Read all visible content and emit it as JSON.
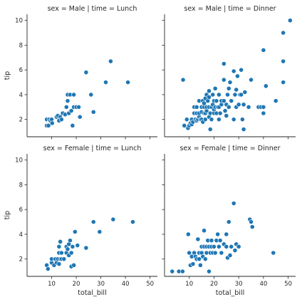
{
  "chart_data": {
    "type": "scatter",
    "xlabel": "total_bill",
    "ylabel": "tip",
    "xlim": [
      0,
      53
    ],
    "ylim": [
      0.6,
      10.5
    ],
    "xticks": [
      10,
      20,
      30,
      40,
      50
    ],
    "yticks": [
      2,
      4,
      6,
      8,
      10
    ],
    "marker_color": "#1f77b4",
    "panels": [
      {
        "title": "sex = Male | time = Lunch",
        "points": [
          [
            8,
            1.5
          ],
          [
            8,
            2
          ],
          [
            8.7,
            1.5
          ],
          [
            9,
            2
          ],
          [
            9.5,
            1.9
          ],
          [
            10,
            2
          ],
          [
            10.2,
            1.7
          ],
          [
            12,
            2.2
          ],
          [
            12.5,
            2.3
          ],
          [
            13,
            1.9
          ],
          [
            13.5,
            2.2
          ],
          [
            14,
            2
          ],
          [
            14.5,
            2.5
          ],
          [
            15.5,
            2.4
          ],
          [
            16,
            3
          ],
          [
            16.5,
            4
          ],
          [
            16.5,
            3.5
          ],
          [
            17,
            2.5
          ],
          [
            17.5,
            4
          ],
          [
            18,
            2.7
          ],
          [
            18.5,
            1.5
          ],
          [
            19,
            3
          ],
          [
            19,
            4
          ],
          [
            20,
            3
          ],
          [
            21,
            3
          ],
          [
            21.5,
            2.2
          ],
          [
            24,
            5.8
          ],
          [
            26,
            4
          ],
          [
            27,
            2.6
          ],
          [
            32,
            5
          ],
          [
            34,
            6.7
          ],
          [
            41,
            5
          ]
        ]
      },
      {
        "title": "sex = Male | time = Dinner",
        "points": [
          [
            7.5,
            5.2
          ],
          [
            8,
            1.5
          ],
          [
            9,
            2
          ],
          [
            9.5,
            1.3
          ],
          [
            10,
            1.5
          ],
          [
            10.5,
            1.7
          ],
          [
            11,
            1.6
          ],
          [
            11,
            2
          ],
          [
            11.5,
            1.8
          ],
          [
            12,
            2.5
          ],
          [
            12,
            3
          ],
          [
            12.5,
            2
          ],
          [
            13,
            1.9
          ],
          [
            13,
            2.5
          ],
          [
            13,
            3
          ],
          [
            13.5,
            2
          ],
          [
            14,
            2.2
          ],
          [
            14,
            2.5
          ],
          [
            14,
            3.5
          ],
          [
            14.5,
            2
          ],
          [
            15,
            2
          ],
          [
            15,
            2.6
          ],
          [
            15,
            3
          ],
          [
            15.5,
            3.5
          ],
          [
            15.5,
            1.8
          ],
          [
            16,
            2.5
          ],
          [
            16,
            3
          ],
          [
            16,
            3.3
          ],
          [
            16.5,
            2
          ],
          [
            16.5,
            2.5
          ],
          [
            16.5,
            3.7
          ],
          [
            17,
            2.7
          ],
          [
            17,
            3
          ],
          [
            17,
            4
          ],
          [
            17.5,
            3.5
          ],
          [
            18,
            2.2
          ],
          [
            18,
            3
          ],
          [
            18,
            3.8
          ],
          [
            18,
            4.3
          ],
          [
            18.5,
            2.5
          ],
          [
            18.5,
            1.2
          ],
          [
            19,
            3
          ],
          [
            19,
            2
          ],
          [
            19.5,
            3.2
          ],
          [
            19.5,
            4
          ],
          [
            20,
            2.8
          ],
          [
            20,
            3.5
          ],
          [
            20,
            2.5
          ],
          [
            20.5,
            3
          ],
          [
            20.5,
            4.5
          ],
          [
            21,
            3.5
          ],
          [
            21,
            2.5
          ],
          [
            21.5,
            3
          ],
          [
            22,
            2
          ],
          [
            22,
            3
          ],
          [
            22,
            4
          ],
          [
            22.5,
            2.5
          ],
          [
            23,
            3.2
          ],
          [
            23,
            3.5
          ],
          [
            24,
            3.5
          ],
          [
            24,
            5.2
          ],
          [
            24,
            6.5
          ],
          [
            24.5,
            2.7
          ],
          [
            25,
            3.2
          ],
          [
            25,
            2.3
          ],
          [
            25.5,
            4
          ],
          [
            26,
            3
          ],
          [
            26,
            4.5
          ],
          [
            26.5,
            5
          ],
          [
            27,
            3.5
          ],
          [
            28,
            2
          ],
          [
            28,
            5.9
          ],
          [
            28.5,
            4
          ],
          [
            29,
            3
          ],
          [
            29,
            4.4
          ],
          [
            29.5,
            5.5
          ],
          [
            30,
            3.2
          ],
          [
            30.5,
            4
          ],
          [
            31,
            6
          ],
          [
            31,
            4
          ],
          [
            31.5,
            2
          ],
          [
            32,
            1.2
          ],
          [
            32,
            3.2
          ],
          [
            32.5,
            4.2
          ],
          [
            34,
            3
          ],
          [
            35,
            5.2
          ],
          [
            38,
            3
          ],
          [
            39,
            3
          ],
          [
            40,
            2.5
          ],
          [
            40,
            7.6
          ],
          [
            40,
            3
          ],
          [
            41,
            4.7
          ],
          [
            45,
            3.5
          ],
          [
            48,
            5
          ],
          [
            48,
            9
          ],
          [
            48,
            6.7
          ],
          [
            50.8,
            10
          ]
        ]
      },
      {
        "title": "sex = Female | time = Lunch",
        "points": [
          [
            8,
            1.5
          ],
          [
            8.5,
            1.2
          ],
          [
            10,
            1.7
          ],
          [
            10,
            2
          ],
          [
            11,
            1.5
          ],
          [
            11.5,
            2
          ],
          [
            12,
            1.7
          ],
          [
            12.5,
            2
          ],
          [
            13,
            1.6
          ],
          [
            13,
            2.5
          ],
          [
            13,
            3
          ],
          [
            13.5,
            2
          ],
          [
            13.5,
            3.4
          ],
          [
            14,
            2
          ],
          [
            14,
            2.5
          ],
          [
            15,
            2
          ],
          [
            16,
            2.5
          ],
          [
            16,
            3
          ],
          [
            16.5,
            2.8
          ],
          [
            17,
            2.3
          ],
          [
            17,
            3.2
          ],
          [
            17.5,
            3.5
          ],
          [
            18,
            2.5
          ],
          [
            18,
            1.4
          ],
          [
            18.5,
            3
          ],
          [
            19,
            1.5
          ],
          [
            19.5,
            4.2
          ],
          [
            20.5,
            3.1
          ],
          [
            24,
            2.9
          ],
          [
            27,
            5
          ],
          [
            29.5,
            4.2
          ],
          [
            35,
            5.2
          ],
          [
            43,
            5
          ]
        ]
      },
      {
        "title": "sex = Female | time = Dinner",
        "points": [
          [
            3.1,
            1
          ],
          [
            5.8,
            1
          ],
          [
            7.3,
            1
          ],
          [
            9.6,
            4
          ],
          [
            10,
            2.5
          ],
          [
            10.5,
            1.5
          ],
          [
            11,
            2.2
          ],
          [
            11.5,
            1.6
          ],
          [
            12,
            2.5
          ],
          [
            12.5,
            2.2
          ],
          [
            13,
            2
          ],
          [
            13.5,
            3.6
          ],
          [
            14,
            2
          ],
          [
            14,
            2.5
          ],
          [
            14.5,
            1.5
          ],
          [
            15,
            2.5
          ],
          [
            15,
            3
          ],
          [
            15.5,
            2.2
          ],
          [
            16,
            3
          ],
          [
            16,
            4.3
          ],
          [
            16.5,
            2
          ],
          [
            17,
            3
          ],
          [
            17,
            2.5
          ],
          [
            17.5,
            3.5
          ],
          [
            18,
            1
          ],
          [
            18,
            3
          ],
          [
            18.5,
            2.5
          ],
          [
            19,
            3
          ],
          [
            19,
            3.5
          ],
          [
            19.5,
            2.5
          ],
          [
            20,
            3
          ],
          [
            20.5,
            2.5
          ],
          [
            21,
            3.5
          ],
          [
            21.5,
            4
          ],
          [
            22,
            3
          ],
          [
            22.5,
            3.5
          ],
          [
            23,
            2.5
          ],
          [
            24,
            3.2
          ],
          [
            25,
            3
          ],
          [
            25,
            4
          ],
          [
            25.5,
            2.1
          ],
          [
            26,
            5
          ],
          [
            26.5,
            2.3
          ],
          [
            27,
            3
          ],
          [
            28,
            6.5
          ],
          [
            28.5,
            2.7
          ],
          [
            29,
            3.2
          ],
          [
            30,
            3
          ],
          [
            34.5,
            5.2
          ],
          [
            35,
            5
          ],
          [
            35.5,
            4.6
          ],
          [
            44,
            2.5
          ]
        ]
      }
    ]
  }
}
